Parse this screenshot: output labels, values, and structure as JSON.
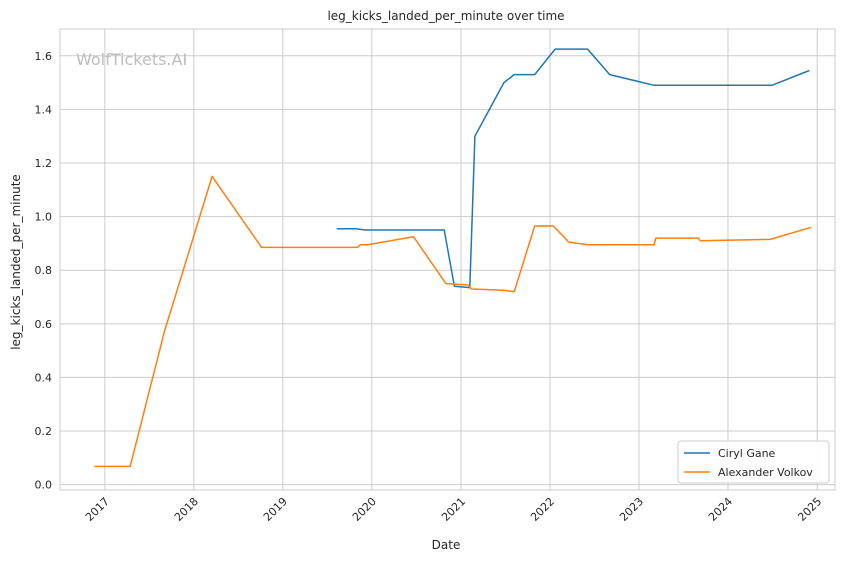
{
  "chart_data": {
    "type": "line",
    "title": "leg_kicks_landed_per_minute over time",
    "xlabel": "Date",
    "ylabel": "leg_kicks_landed_per_minute",
    "watermark": "WolfTickets.AI",
    "x_range": [
      "2016-07-01",
      "2025-03-15"
    ],
    "ylim": [
      -0.02,
      1.7
    ],
    "x_ticks": [
      "2017",
      "2018",
      "2019",
      "2020",
      "2021",
      "2022",
      "2023",
      "2024",
      "2025"
    ],
    "y_ticks": [
      "0.0",
      "0.2",
      "0.4",
      "0.6",
      "0.8",
      "1.0",
      "1.2",
      "1.4",
      "1.6"
    ],
    "grid": true,
    "legend_position": "bottom-right",
    "series": [
      {
        "name": "Ciryl Gane",
        "color": "#1f77b4",
        "points": [
          [
            "2019-08-10",
            0.955
          ],
          [
            "2019-10-26",
            0.955
          ],
          [
            "2019-12-07",
            0.95
          ],
          [
            "2020-10-24",
            0.95
          ],
          [
            "2020-12-05",
            0.74
          ],
          [
            "2021-02-06",
            0.735
          ],
          [
            "2021-02-27",
            1.3
          ],
          [
            "2021-06-26",
            1.5
          ],
          [
            "2021-08-07",
            1.53
          ],
          [
            "2021-10-30",
            1.53
          ],
          [
            "2022-01-22",
            1.625
          ],
          [
            "2022-06-04",
            1.625
          ],
          [
            "2022-09-03",
            1.53
          ],
          [
            "2023-03-04",
            1.49
          ],
          [
            "2024-06-29",
            1.49
          ],
          [
            "2024-11-30",
            1.545
          ]
        ]
      },
      {
        "name": "Alexander Volkov",
        "color": "#ff7f0e",
        "points": [
          [
            "2016-11-19",
            0.068
          ],
          [
            "2017-04-15",
            0.068
          ],
          [
            "2017-09-02",
            0.57
          ],
          [
            "2018-03-17",
            1.15
          ],
          [
            "2018-10-06",
            0.885
          ],
          [
            "2019-11-02",
            0.885
          ],
          [
            "2019-11-16",
            0.895
          ],
          [
            "2019-12-14",
            0.895
          ],
          [
            "2020-06-20",
            0.925
          ],
          [
            "2020-10-31",
            0.75
          ],
          [
            "2021-01-30",
            0.745
          ],
          [
            "2021-02-13",
            0.73
          ],
          [
            "2021-06-26",
            0.725
          ],
          [
            "2021-08-07",
            0.72
          ],
          [
            "2021-10-30",
            0.965
          ],
          [
            "2022-01-15",
            0.965
          ],
          [
            "2022-03-19",
            0.905
          ],
          [
            "2022-06-04",
            0.895
          ],
          [
            "2023-03-04",
            0.895
          ],
          [
            "2023-03-11",
            0.92
          ],
          [
            "2023-09-02",
            0.92
          ],
          [
            "2023-09-09",
            0.91
          ],
          [
            "2024-06-22",
            0.915
          ],
          [
            "2024-12-07",
            0.96
          ]
        ]
      }
    ]
  }
}
